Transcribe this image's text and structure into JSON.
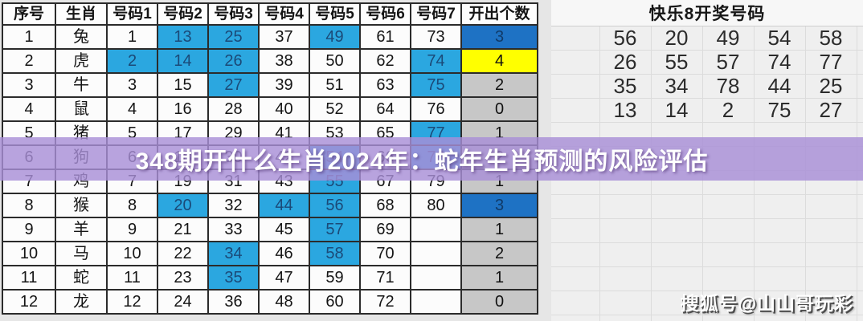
{
  "left_table": {
    "headers": [
      "序号",
      "生肖",
      "号码1",
      "号码2",
      "号码3",
      "号码4",
      "号码5",
      "号码6",
      "号码7",
      "开出个数"
    ],
    "rows": [
      {
        "no": "1",
        "zodiac": "兔",
        "nums": [
          "1",
          "13",
          "25",
          "37",
          "49",
          "61",
          "73"
        ],
        "hl": [
          1,
          2,
          4
        ],
        "count": "3",
        "count_style": "blue"
      },
      {
        "no": "2",
        "zodiac": "虎",
        "nums": [
          "2",
          "14",
          "26",
          "38",
          "50",
          "62",
          "74"
        ],
        "hl": [
          0,
          1,
          2,
          6
        ],
        "count": "4",
        "count_style": "yellow"
      },
      {
        "no": "3",
        "zodiac": "牛",
        "nums": [
          "3",
          "15",
          "27",
          "39",
          "51",
          "63",
          "75"
        ],
        "hl": [
          2,
          6
        ],
        "count": "2",
        "count_style": "gray"
      },
      {
        "no": "4",
        "zodiac": "鼠",
        "nums": [
          "4",
          "16",
          "28",
          "40",
          "52",
          "64",
          "76"
        ],
        "hl": [],
        "count": "0",
        "count_style": "gray"
      },
      {
        "no": "5",
        "zodiac": "猪",
        "nums": [
          "5",
          "17",
          "29",
          "41",
          "53",
          "65",
          "77"
        ],
        "hl": [
          6
        ],
        "count": "1",
        "count_style": "gray"
      },
      {
        "no": "6",
        "zodiac": "狗",
        "nums": [
          "6",
          "18",
          "30",
          "42",
          "54",
          "66",
          "78"
        ],
        "hl": [
          4,
          6
        ],
        "count": "2",
        "count_style": "gray"
      },
      {
        "no": "7",
        "zodiac": "鸡",
        "nums": [
          "7",
          "19",
          "31",
          "43",
          "55",
          "67",
          "79"
        ],
        "hl": [
          4
        ],
        "count": "1",
        "count_style": "gray"
      },
      {
        "no": "8",
        "zodiac": "猴",
        "nums": [
          "8",
          "20",
          "32",
          "44",
          "56",
          "68",
          "80"
        ],
        "hl": [
          1,
          3,
          4
        ],
        "count": "3",
        "count_style": "blue"
      },
      {
        "no": "9",
        "zodiac": "羊",
        "nums": [
          "9",
          "21",
          "33",
          "45",
          "57",
          "69",
          ""
        ],
        "hl": [
          4
        ],
        "count": "1",
        "count_style": "gray"
      },
      {
        "no": "10",
        "zodiac": "马",
        "nums": [
          "10",
          "22",
          "34",
          "46",
          "58",
          "70",
          ""
        ],
        "hl": [
          2,
          4
        ],
        "count": "2",
        "count_style": "gray"
      },
      {
        "no": "11",
        "zodiac": "蛇",
        "nums": [
          "11",
          "23",
          "35",
          "47",
          "59",
          "71",
          ""
        ],
        "hl": [
          2
        ],
        "count": "1",
        "count_style": "gray"
      },
      {
        "no": "12",
        "zodiac": "龙",
        "nums": [
          "12",
          "24",
          "36",
          "48",
          "60",
          "72",
          ""
        ],
        "hl": [],
        "count": "0",
        "count_style": "gray"
      }
    ],
    "colors": {
      "highlight_blue": "#2ba7e0",
      "count_blue": "#1e72c4",
      "count_yellow": "#ffff00",
      "count_gray": "#c7c7c7"
    }
  },
  "right_panel": {
    "title": "快乐8开奖号码",
    "rows": [
      [
        "56",
        "20",
        "49",
        "54",
        "58"
      ],
      [
        "26",
        "55",
        "57",
        "74",
        "77"
      ],
      [
        "35",
        "34",
        "78",
        "44",
        "25"
      ],
      [
        "13",
        "14",
        "2",
        "75",
        "27"
      ]
    ]
  },
  "banner": {
    "text": "348期开什么生肖2024年：蛇年生肖预测的风险评估",
    "bg_color": "#a88fd7",
    "text_color": "#ffffff"
  },
  "watermark": {
    "text": "搜狐号@山山哥玩彩"
  }
}
